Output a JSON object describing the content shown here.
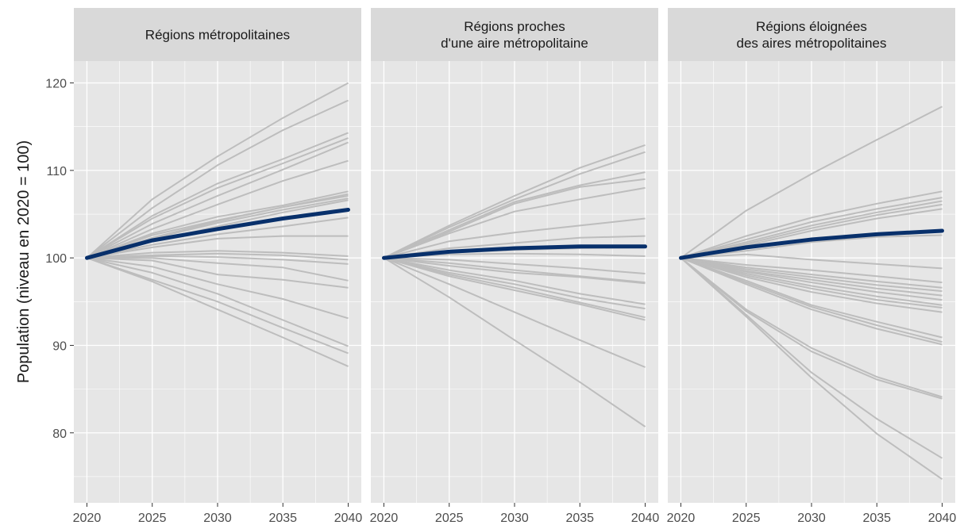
{
  "chart_data": {
    "type": "line",
    "ylabel": "Population (niveau en 2020 = 100)",
    "xlabel": "",
    "x": [
      2020,
      2025,
      2030,
      2035,
      2040
    ],
    "x_ticks": [
      "2020",
      "2025",
      "2030",
      "2035",
      "2040"
    ],
    "y_ticks": [
      "80",
      "90",
      "100",
      "110",
      "120"
    ],
    "ylim": [
      72,
      122.5
    ],
    "xlim": [
      2019,
      2041
    ],
    "grid": true,
    "colors": {
      "panel_background": "#e6e6e6",
      "strip_background": "#d9d9d9",
      "grid": "#ffffff",
      "region_lines": "#bdbdbd",
      "average_line": "#08306b"
    },
    "panels": [
      {
        "title_lines": [
          "Régions métropolitaines"
        ],
        "region_series": [
          [
            100,
            106.7,
            111.6,
            116.0,
            120.0
          ],
          [
            100,
            105.7,
            110.6,
            114.6,
            118.0
          ],
          [
            100,
            104.8,
            108.5,
            111.3,
            114.3
          ],
          [
            100,
            104.5,
            108.0,
            110.8,
            113.7
          ],
          [
            100,
            103.9,
            107.1,
            110.1,
            113.2
          ],
          [
            100,
            103.3,
            106.1,
            108.8,
            111.1
          ],
          [
            100,
            102.8,
            104.7,
            106.0,
            107.6
          ],
          [
            100,
            102.6,
            104.3,
            105.8,
            107.3
          ],
          [
            100,
            102.3,
            104.2,
            105.8,
            107.1
          ],
          [
            100,
            102.2,
            104.0,
            105.5,
            106.8
          ],
          [
            100,
            101.9,
            103.6,
            105.2,
            106.6
          ],
          [
            100,
            101.5,
            102.7,
            103.6,
            104.6
          ],
          [
            100,
            101.2,
            102.2,
            102.5,
            102.5
          ],
          [
            100,
            100.6,
            100.8,
            100.6,
            100.2
          ],
          [
            100,
            100.3,
            100.5,
            100.3,
            99.8
          ],
          [
            100,
            100.2,
            100.1,
            99.8,
            99.3
          ],
          [
            100,
            100.0,
            99.4,
            98.9,
            97.4
          ],
          [
            100,
            99.7,
            98.1,
            97.5,
            96.6
          ],
          [
            100,
            99.0,
            97.0,
            95.3,
            93.1
          ],
          [
            100,
            98.3,
            95.9,
            92.9,
            89.9
          ],
          [
            100,
            97.5,
            95.0,
            92.0,
            89.1
          ],
          [
            100,
            97.3,
            94.1,
            90.9,
            87.6
          ]
        ],
        "average_series": [
          100,
          102.0,
          103.3,
          104.5,
          105.5
        ]
      },
      {
        "title_lines": [
          "Régions proches",
          "d'une aire métropolitaine"
        ],
        "region_series": [
          [
            100,
            103.7,
            107.1,
            110.3,
            112.9
          ],
          [
            100,
            103.5,
            106.7,
            109.6,
            112.1
          ],
          [
            100,
            103.2,
            106.4,
            108.3,
            109.8
          ],
          [
            100,
            103.0,
            106.2,
            108.1,
            109.0
          ],
          [
            100,
            102.8,
            105.3,
            106.7,
            108.0
          ],
          [
            100,
            101.9,
            102.9,
            103.7,
            104.5
          ],
          [
            100,
            101.1,
            101.7,
            102.3,
            102.5
          ],
          [
            100,
            100.6,
            100.9,
            101.1,
            101.2
          ],
          [
            100,
            100.4,
            100.5,
            100.4,
            100.2
          ],
          [
            100,
            99.8,
            99.3,
            98.8,
            98.2
          ],
          [
            100,
            99.4,
            98.6,
            97.9,
            97.2
          ],
          [
            100,
            99.1,
            98.3,
            97.8,
            97.1
          ],
          [
            100,
            98.6,
            97.4,
            95.9,
            94.7
          ],
          [
            100,
            98.3,
            97.0,
            95.4,
            94.2
          ],
          [
            100,
            98.1,
            96.6,
            94.9,
            93.2
          ],
          [
            100,
            97.9,
            96.3,
            94.7,
            92.9
          ],
          [
            100,
            97.0,
            93.8,
            90.6,
            87.5
          ],
          [
            100,
            95.5,
            90.6,
            85.8,
            80.7
          ]
        ],
        "average_series": [
          100,
          100.7,
          101.1,
          101.3,
          101.3
        ]
      },
      {
        "title_lines": [
          "Régions éloignées",
          "des aires métropolitaines"
        ],
        "region_series": [
          [
            100,
            105.4,
            109.6,
            113.5,
            117.3
          ],
          [
            100,
            102.5,
            104.6,
            106.2,
            107.6
          ],
          [
            100,
            102.1,
            104.1,
            105.6,
            106.9
          ],
          [
            100,
            101.8,
            103.7,
            105.2,
            106.5
          ],
          [
            100,
            101.6,
            103.4,
            104.9,
            106.1
          ],
          [
            100,
            101.4,
            103.1,
            104.5,
            105.6
          ],
          [
            100,
            100.8,
            101.8,
            102.4,
            102.6
          ],
          [
            100,
            100.4,
            99.8,
            99.3,
            98.8
          ],
          [
            100,
            99.2,
            98.6,
            97.9,
            97.2
          ],
          [
            100,
            98.9,
            98.1,
            97.3,
            96.6
          ],
          [
            100,
            98.7,
            97.8,
            96.9,
            96.2
          ],
          [
            100,
            98.5,
            97.5,
            96.5,
            95.7
          ],
          [
            100,
            98.4,
            97.2,
            96.1,
            95.2
          ],
          [
            100,
            98.2,
            96.8,
            95.6,
            94.6
          ],
          [
            100,
            98.0,
            96.5,
            95.2,
            94.3
          ],
          [
            100,
            97.8,
            96.1,
            94.8,
            93.8
          ],
          [
            100,
            97.4,
            94.6,
            92.7,
            90.9
          ],
          [
            100,
            97.2,
            94.4,
            92.3,
            90.4
          ],
          [
            100,
            97.0,
            94.1,
            91.9,
            90.1
          ],
          [
            100,
            94.1,
            89.7,
            86.4,
            84.1
          ],
          [
            100,
            93.9,
            89.3,
            86.1,
            83.9
          ],
          [
            100,
            93.5,
            86.9,
            81.6,
            77.1
          ],
          [
            100,
            93.3,
            86.3,
            79.9,
            74.7
          ]
        ],
        "average_series": [
          100,
          101.2,
          102.1,
          102.7,
          103.1
        ]
      }
    ]
  }
}
